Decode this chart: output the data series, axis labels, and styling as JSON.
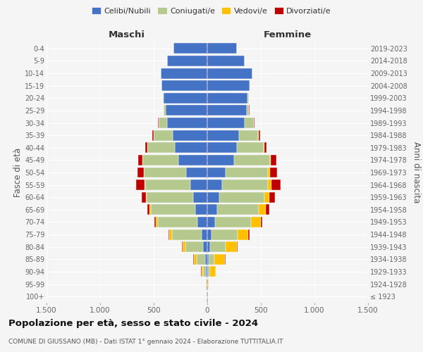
{
  "age_groups": [
    "100+",
    "95-99",
    "90-94",
    "85-89",
    "80-84",
    "75-79",
    "70-74",
    "65-69",
    "60-64",
    "55-59",
    "50-54",
    "45-49",
    "40-44",
    "35-39",
    "30-34",
    "25-29",
    "20-24",
    "15-19",
    "10-14",
    "5-9",
    "0-4"
  ],
  "birth_years": [
    "≤ 1923",
    "1924-1928",
    "1929-1933",
    "1934-1938",
    "1939-1943",
    "1944-1948",
    "1949-1953",
    "1954-1958",
    "1959-1963",
    "1964-1968",
    "1969-1973",
    "1974-1978",
    "1979-1983",
    "1984-1988",
    "1989-1993",
    "1994-1998",
    "1999-2003",
    "2004-2008",
    "2009-2013",
    "2014-2018",
    "2019-2023"
  ],
  "maschi": {
    "celibi": [
      2,
      4,
      10,
      20,
      40,
      55,
      90,
      110,
      130,
      155,
      195,
      270,
      305,
      325,
      375,
      385,
      405,
      425,
      435,
      375,
      315
    ],
    "coniugati": [
      2,
      5,
      30,
      80,
      165,
      275,
      370,
      415,
      435,
      425,
      395,
      335,
      255,
      175,
      78,
      22,
      8,
      4,
      2,
      1,
      1
    ],
    "vedovi": [
      1,
      3,
      15,
      28,
      28,
      22,
      18,
      13,
      8,
      4,
      2,
      1,
      1,
      1,
      1,
      1,
      1,
      0,
      0,
      0,
      0
    ],
    "divorziati": [
      0,
      1,
      2,
      3,
      4,
      13,
      18,
      22,
      38,
      78,
      58,
      38,
      18,
      13,
      4,
      2,
      1,
      0,
      0,
      0,
      0
    ]
  },
  "femmine": {
    "nubili": [
      2,
      3,
      7,
      13,
      25,
      40,
      72,
      92,
      112,
      140,
      170,
      248,
      278,
      298,
      348,
      368,
      378,
      398,
      418,
      348,
      278
    ],
    "coniugate": [
      1,
      3,
      18,
      55,
      145,
      242,
      338,
      388,
      418,
      428,
      398,
      338,
      248,
      178,
      85,
      22,
      8,
      4,
      2,
      1,
      1
    ],
    "vedove": [
      2,
      8,
      52,
      98,
      108,
      98,
      88,
      68,
      48,
      28,
      18,
      8,
      4,
      2,
      2,
      1,
      1,
      0,
      0,
      0,
      0
    ],
    "divorziate": [
      0,
      1,
      2,
      3,
      7,
      13,
      18,
      28,
      52,
      88,
      68,
      52,
      22,
      13,
      7,
      2,
      1,
      0,
      0,
      0,
      0
    ]
  },
  "colors": {
    "celibi": "#4472c4",
    "coniugati": "#b5c98e",
    "vedovi": "#ffc000",
    "divorziati": "#c00000"
  },
  "xlim": 1500,
  "title": "Popolazione per età, sesso e stato civile - 2024",
  "subtitle": "COMUNE DI GIUSSANO (MB) - Dati ISTAT 1° gennaio 2024 - Elaborazione TUTTITALIA.IT",
  "ylabel_left": "Fasce di età",
  "ylabel_right": "Anni di nascita",
  "xlabel_maschi": "Maschi",
  "xlabel_femmine": "Femmine",
  "bg_color": "#f5f5f5",
  "legend_labels": [
    "Celibi/Nubili",
    "Coniugati/e",
    "Vedovi/e",
    "Divorziati/e"
  ]
}
